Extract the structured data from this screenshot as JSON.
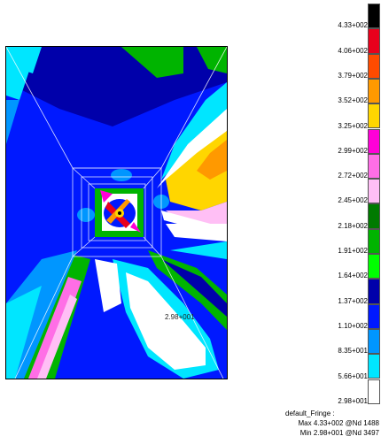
{
  "model_view": {
    "min_marker_label": "2.98+001"
  },
  "legend": {
    "values": [
      "4.33+002",
      "4.06+002",
      "3.79+002",
      "3.52+002",
      "3.25+002",
      "2.99+002",
      "2.72+002",
      "2.45+002",
      "2.18+002",
      "1.91+002",
      "1.64+002",
      "1.37+002",
      "1.10+002",
      "8.35+001",
      "5.66+001",
      "2.98+001"
    ],
    "colors": [
      "#000000",
      "#e8001c",
      "#ff4b00",
      "#ff9900",
      "#ffd600",
      "#ff00d7",
      "#ff6ee6",
      "#ffbff5",
      "#007a00",
      "#00b400",
      "#00ff00",
      "#0000aa",
      "#0019ff",
      "#0096ff",
      "#00e6ff",
      "#ffffff"
    ],
    "title": "default_Fringe :",
    "max_text": "Max 4.33+002 @Nd 1488",
    "min_text": "Min 2.98+001 @Nd 3497"
  }
}
